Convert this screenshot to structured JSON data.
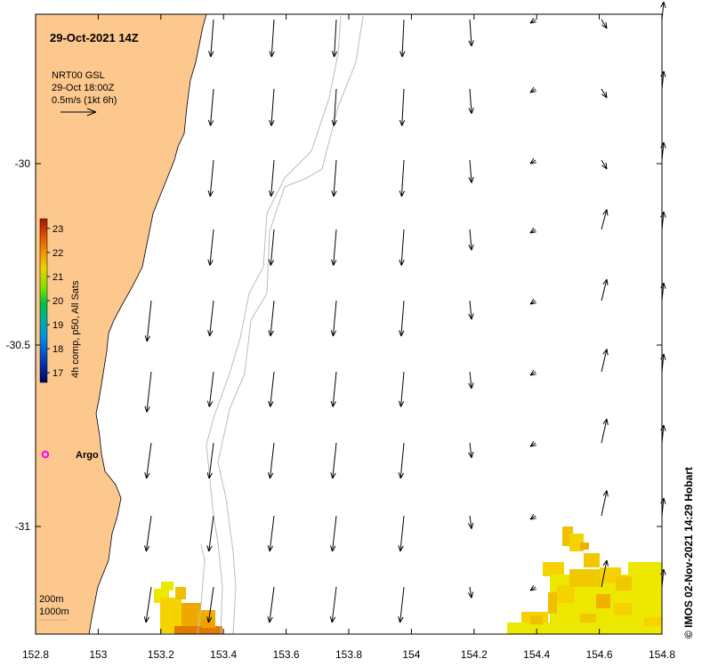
{
  "map": {
    "title": "29-Oct-2021 14Z",
    "model_info": {
      "line1": "NRT00 GSL",
      "line2": "29-Oct 18:00Z",
      "line3": "0.5m/s (1kt 6h)"
    },
    "colorbar": {
      "label": "4h comp, p50, All Sats",
      "ticks": [
        "23",
        "22",
        "21",
        "20",
        "19",
        "18",
        "17"
      ],
      "min": 16.6,
      "max": 23.4
    },
    "argo": {
      "label": "Argo",
      "lon": 152.83,
      "lat": -30.81
    },
    "contours": {
      "label1": "200m",
      "label2": "1000m"
    },
    "credit": "© IMOS 02-Nov-2021 14:29 Hobart",
    "axes": {
      "x_ticks": [
        "152.8",
        "153",
        "153.2",
        "153.4",
        "153.6",
        "153.8",
        "154",
        "154.2",
        "154.4",
        "154.6",
        "154.8"
      ],
      "x_values": [
        152.8,
        153.0,
        153.2,
        153.4,
        153.6,
        153.8,
        154.0,
        154.2,
        154.4,
        154.6,
        154.8
      ],
      "y_ticks": [
        "-30",
        "-30.5",
        "-31"
      ],
      "y_values": [
        -30.0,
        -30.5,
        -31.0
      ],
      "lon_range": [
        152.8,
        154.8
      ],
      "lat_range": [
        -31.3,
        -29.6
      ]
    },
    "colors": {
      "land": "#fcc88e",
      "sst_warm": "#f0a800",
      "sst_mid": "#f5d200",
      "sst_light": "#ece800",
      "argo": "#ff00ff"
    }
  }
}
